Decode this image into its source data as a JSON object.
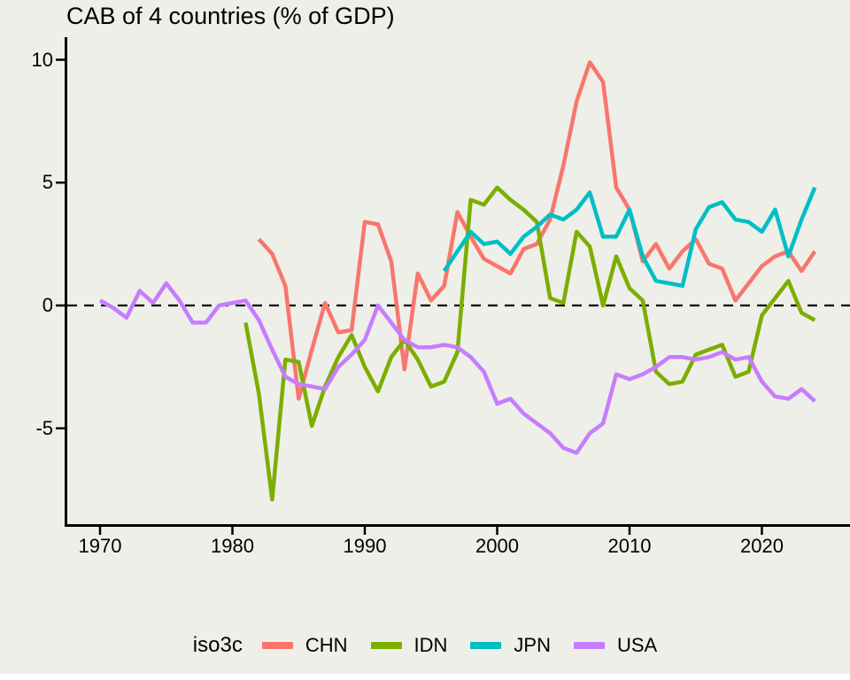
{
  "title": "CAB of 4 countries (% of GDP)",
  "colors": {
    "background": "#EEEFE8",
    "axis": "#000000",
    "text": "#000000"
  },
  "chart_data": {
    "type": "line",
    "title": "CAB of 4 countries (% of GDP)",
    "xlabel": "",
    "ylabel": "",
    "x_range": [
      1965.5,
      2026.5
    ],
    "y_range": [
      -9.0,
      11.0
    ],
    "x_tick_values": [
      1970,
      1980,
      1990,
      2000,
      2010,
      2020
    ],
    "y_tick_values": [
      10,
      5,
      0,
      -5
    ],
    "zero_line_dashed": true,
    "grid": "off",
    "legend_position": "bottom",
    "legend_title": "iso3c",
    "series": [
      {
        "name": "CHN",
        "color": "#F8766D",
        "start_year": 1982,
        "values": [
          2.7,
          2.1,
          0.8,
          -3.8,
          -1.8,
          0.1,
          -1.1,
          -1.0,
          3.4,
          3.3,
          1.8,
          -2.6,
          1.3,
          0.2,
          0.8,
          3.8,
          2.8,
          1.9,
          1.6,
          1.3,
          2.3,
          2.5,
          3.5,
          5.7,
          8.3,
          9.9,
          9.1,
          4.8,
          3.9,
          1.8,
          2.5,
          1.5,
          2.2,
          2.7,
          1.7,
          1.5,
          0.2,
          0.9,
          1.6,
          2.0,
          2.2,
          1.4,
          2.2
        ]
      },
      {
        "name": "IDN",
        "color": "#7CAE00",
        "start_year": 1981,
        "values": [
          -0.7,
          -3.6,
          -7.9,
          -2.2,
          -2.3,
          -4.9,
          -3.3,
          -2.1,
          -1.2,
          -2.5,
          -3.5,
          -2.1,
          -1.4,
          -2.2,
          -3.3,
          -3.1,
          -1.9,
          4.3,
          4.1,
          4.8,
          4.3,
          3.9,
          3.4,
          0.3,
          0.1,
          3.0,
          2.4,
          0.0,
          2.0,
          0.7,
          0.2,
          -2.7,
          -3.2,
          -3.1,
          -2.0,
          -1.8,
          -1.6,
          -2.9,
          -2.7,
          -0.4,
          0.3,
          1.0,
          -0.3,
          -0.6
        ]
      },
      {
        "name": "JPN",
        "color": "#00BFC4",
        "start_year": 1996,
        "values": [
          1.4,
          2.2,
          3.0,
          2.5,
          2.6,
          2.1,
          2.8,
          3.2,
          3.7,
          3.5,
          3.9,
          4.6,
          2.8,
          2.8,
          3.9,
          2.0,
          1.0,
          0.9,
          0.8,
          3.1,
          4.0,
          4.2,
          3.5,
          3.4,
          3.0,
          3.9,
          2.0,
          3.5,
          4.8
        ]
      },
      {
        "name": "USA",
        "color": "#C77CFF",
        "start_year": 1970,
        "values": [
          0.2,
          -0.1,
          -0.5,
          0.6,
          0.1,
          0.9,
          0.2,
          -0.7,
          -0.7,
          0.0,
          0.1,
          0.2,
          -0.6,
          -1.8,
          -2.9,
          -3.2,
          -3.3,
          -3.4,
          -2.5,
          -2.0,
          -1.4,
          0.0,
          -0.7,
          -1.4,
          -1.7,
          -1.7,
          -1.6,
          -1.7,
          -2.1,
          -2.7,
          -4.0,
          -3.8,
          -4.4,
          -4.8,
          -5.2,
          -5.8,
          -6.0,
          -5.2,
          -4.8,
          -2.8,
          -3.0,
          -2.8,
          -2.5,
          -2.1,
          -2.1,
          -2.2,
          -2.1,
          -1.9,
          -2.2,
          -2.1,
          -3.1,
          -3.7,
          -3.8,
          -3.4,
          -3.9
        ]
      }
    ]
  }
}
